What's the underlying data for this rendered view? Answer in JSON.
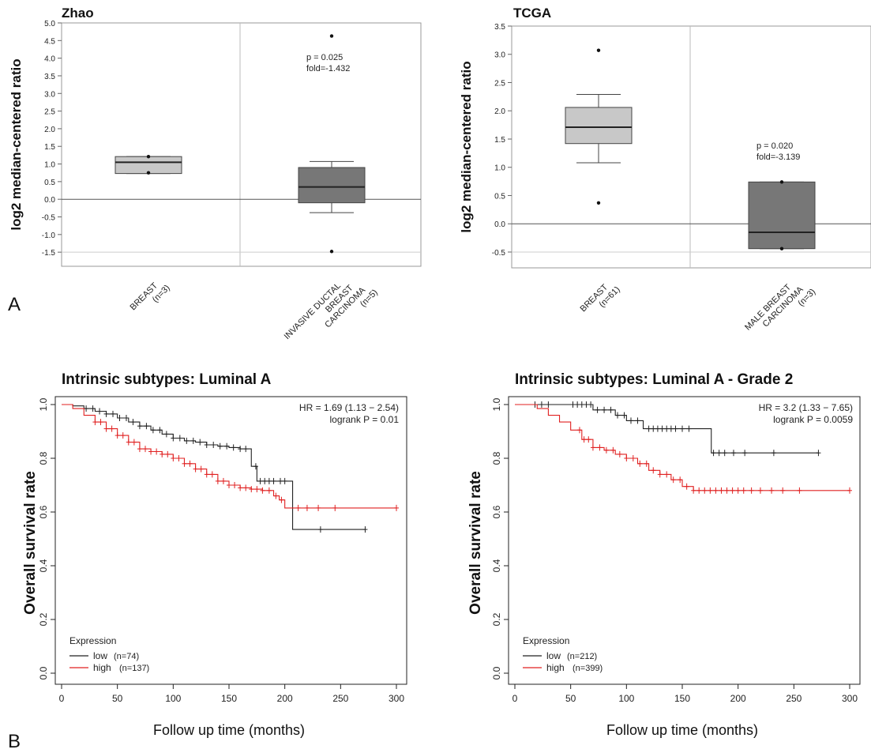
{
  "panel_labels": {
    "a": "A",
    "b": "B"
  },
  "chart_data": [
    {
      "type": "box",
      "title": "Zhao",
      "ylabel": "log2 median-centered ratio",
      "ylim": [
        -1.9,
        5.0
      ],
      "yticks": [
        -1.5,
        -1.0,
        -0.5,
        0.0,
        0.5,
        1.0,
        1.5,
        2.0,
        2.5,
        3.0,
        3.5,
        4.0,
        4.5,
        5.0
      ],
      "ytick_labels": [
        "-1.5",
        "-1.0",
        "-0.5",
        "0.0",
        "0.5",
        "1.0",
        "1.5",
        "2.0",
        "2.5",
        "3.0",
        "3.5",
        "4.0",
        "4.5",
        "5.0"
      ],
      "groups": [
        {
          "label_lines": [
            "BREAST",
            "(n=3)"
          ],
          "q1": 0.73,
          "median": 1.05,
          "q3": 1.21,
          "whisker_low": 0.73,
          "whisker_high": 1.21,
          "points": [
            1.21,
            0.75
          ],
          "fill": "#c8c8c8"
        },
        {
          "label_lines": [
            "INVASIVE DUCTAL",
            "BREAST",
            "CARCINOMA",
            "(n=5)"
          ],
          "q1": -0.1,
          "median": 0.35,
          "q3": 0.9,
          "whisker_low": -0.38,
          "whisker_high": 1.07,
          "points": [
            4.63,
            -1.48
          ],
          "fill": "#777777"
        }
      ],
      "annotation": [
        "p = 0.025",
        "fold=-1.432"
      ]
    },
    {
      "type": "box",
      "title": "TCGA",
      "ylabel": "log2 median-centered ratio",
      "ylim": [
        -0.78,
        3.5
      ],
      "yticks": [
        -0.5,
        0.0,
        0.5,
        1.0,
        1.5,
        2.0,
        2.5,
        3.0,
        3.5
      ],
      "ytick_labels": [
        "-0.5",
        "0.0",
        "0.5",
        "1.0",
        "1.5",
        "2.0",
        "2.5",
        "3.0",
        "3.5"
      ],
      "groups": [
        {
          "label_lines": [
            "BREAST",
            "(n=61)"
          ],
          "q1": 1.42,
          "median": 1.71,
          "q3": 2.06,
          "whisker_low": 1.08,
          "whisker_high": 2.29,
          "points": [
            3.07,
            0.37
          ],
          "fill": "#c8c8c8"
        },
        {
          "label_lines": [
            "MALE BREAST",
            "CARCINOMA",
            "(n=3)"
          ],
          "q1": -0.44,
          "median": -0.15,
          "q3": 0.74,
          "whisker_low": -0.44,
          "whisker_high": 0.74,
          "points": [
            0.74,
            -0.44
          ],
          "fill": "#777777"
        }
      ],
      "annotation": [
        "p = 0.020",
        "fold=-3.139"
      ]
    },
    {
      "type": "line",
      "subtype": "kaplan-meier",
      "title": "Intrinsic subtypes: Luminal A",
      "xlabel": "Follow up time (months)",
      "ylabel": "Overall survival rate",
      "xlim": [
        0,
        300
      ],
      "ylim": [
        0,
        1
      ],
      "xticks": [
        0,
        50,
        100,
        150,
        200,
        250,
        300
      ],
      "yticks": [
        0.0,
        0.2,
        0.4,
        0.6,
        0.8,
        1.0
      ],
      "ytick_labels": [
        "0.0",
        "0.2",
        "0.4",
        "0.6",
        "0.8",
        "1.0"
      ],
      "stats": [
        "HR = 1.69 (1.13 − 2.54)",
        "logrank P = 0.01"
      ],
      "legend_title": "Expression",
      "legend_position": "bottom-left",
      "series": [
        {
          "name": "low",
          "count_label": "(n=74)",
          "color": "#222222",
          "x": [
            0,
            10,
            20,
            30,
            40,
            50,
            60,
            70,
            80,
            90,
            100,
            110,
            120,
            130,
            140,
            150,
            160,
            168,
            170,
            175,
            205,
            207,
            272
          ],
          "y": [
            1.0,
            0.995,
            0.985,
            0.975,
            0.965,
            0.95,
            0.935,
            0.92,
            0.905,
            0.89,
            0.875,
            0.865,
            0.86,
            0.85,
            0.845,
            0.84,
            0.835,
            0.835,
            0.77,
            0.715,
            0.715,
            0.535,
            0.535
          ],
          "censor_x": [
            22,
            28,
            34,
            40,
            46,
            52,
            58,
            64,
            70,
            76,
            82,
            88,
            94,
            100,
            106,
            112,
            118,
            124,
            130,
            136,
            142,
            148,
            154,
            160,
            165,
            174,
            178,
            182,
            186,
            190,
            196,
            200,
            232,
            272
          ]
        },
        {
          "name": "high",
          "count_label": "(n=137)",
          "color": "#e02020",
          "x": [
            0,
            10,
            20,
            30,
            40,
            50,
            60,
            70,
            80,
            90,
            100,
            110,
            120,
            130,
            140,
            150,
            160,
            170,
            180,
            190,
            195,
            200,
            205,
            300
          ],
          "y": [
            1.0,
            0.985,
            0.96,
            0.935,
            0.91,
            0.885,
            0.86,
            0.835,
            0.825,
            0.815,
            0.8,
            0.78,
            0.76,
            0.74,
            0.715,
            0.7,
            0.69,
            0.685,
            0.68,
            0.66,
            0.645,
            0.615,
            0.615,
            0.615
          ],
          "censor_x": [
            30,
            35,
            40,
            45,
            50,
            55,
            60,
            65,
            70,
            75,
            80,
            85,
            90,
            95,
            100,
            105,
            110,
            115,
            120,
            125,
            130,
            135,
            140,
            145,
            150,
            155,
            160,
            165,
            170,
            175,
            180,
            186,
            192,
            197,
            212,
            220,
            230,
            245,
            300
          ]
        }
      ]
    },
    {
      "type": "line",
      "subtype": "kaplan-meier",
      "title": "Intrinsic subtypes: Luminal A - Grade 2",
      "xlabel": "Follow up time (months)",
      "ylabel": "Overall survival rate",
      "xlim": [
        0,
        300
      ],
      "ylim": [
        0,
        1
      ],
      "xticks": [
        0,
        50,
        100,
        150,
        200,
        250,
        300
      ],
      "yticks": [
        0.0,
        0.2,
        0.4,
        0.6,
        0.8,
        1.0
      ],
      "ytick_labels": [
        "0.0",
        "0.2",
        "0.4",
        "0.6",
        "0.8",
        "1.0"
      ],
      "stats": [
        "HR = 3.2 (1.33 − 7.65)",
        "logrank P = 0.0059"
      ],
      "legend_title": "Expression",
      "legend_position": "bottom-left",
      "series": [
        {
          "name": "low",
          "count_label": "(n=212)",
          "color": "#222222",
          "x": [
            0,
            40,
            70,
            90,
            100,
            115,
            175,
            176,
            272
          ],
          "y": [
            1.0,
            1.0,
            0.98,
            0.96,
            0.94,
            0.91,
            0.91,
            0.82,
            0.82
          ],
          "censor_x": [
            18,
            24,
            30,
            52,
            56,
            60,
            64,
            68,
            74,
            80,
            86,
            92,
            98,
            104,
            110,
            120,
            124,
            128,
            132,
            136,
            140,
            144,
            150,
            156,
            178,
            183,
            188,
            196,
            206,
            232,
            272
          ]
        },
        {
          "name": "high",
          "count_label": "(n=399)",
          "color": "#e02020",
          "x": [
            0,
            20,
            30,
            40,
            50,
            60,
            70,
            80,
            90,
            100,
            110,
            120,
            130,
            140,
            150,
            160,
            300
          ],
          "y": [
            1.0,
            0.985,
            0.96,
            0.935,
            0.905,
            0.87,
            0.84,
            0.83,
            0.815,
            0.8,
            0.78,
            0.755,
            0.74,
            0.72,
            0.695,
            0.68,
            0.68
          ],
          "censor_x": [
            58,
            62,
            66,
            70,
            76,
            82,
            88,
            94,
            100,
            106,
            112,
            118,
            124,
            130,
            136,
            142,
            148,
            154,
            160,
            165,
            170,
            175,
            180,
            185,
            190,
            195,
            200,
            205,
            212,
            220,
            230,
            240,
            255,
            300
          ]
        }
      ]
    }
  ]
}
